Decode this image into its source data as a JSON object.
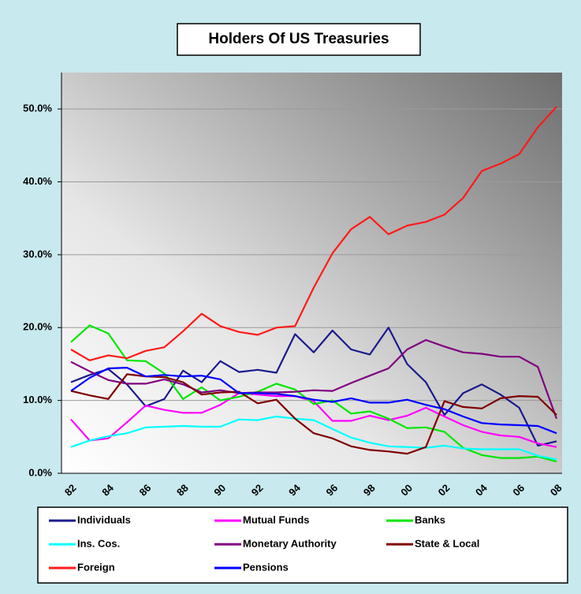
{
  "chart_data": {
    "type": "line",
    "title": "Holders Of US Treasuries",
    "categories": [
      "82",
      null,
      "84",
      null,
      "86",
      null,
      "88",
      null,
      "90",
      null,
      "92",
      null,
      "94",
      null,
      "96",
      null,
      "98",
      null,
      "00",
      null,
      "02",
      null,
      "04",
      null,
      "06",
      null,
      "08"
    ],
    "ylim": [
      0,
      55
    ],
    "yticks": [
      {
        "value": 0,
        "label": "0.0%"
      },
      {
        "value": 10,
        "label": "10.0%"
      },
      {
        "value": 20,
        "label": "20.0%"
      },
      {
        "value": 30,
        "label": "30.0%"
      },
      {
        "value": 40,
        "label": "40.0%"
      },
      {
        "value": 50,
        "label": "50.0%"
      }
    ],
    "grid": true,
    "series": [
      {
        "name": "Individuals",
        "color": "#1a1a8c",
        "values": [
          12.5,
          13.5,
          14.3,
          12.2,
          9.2,
          10.2,
          14.1,
          12.5,
          15.4,
          13.9,
          14.2,
          13.8,
          19.1,
          16.6,
          19.6,
          17.0,
          16.3,
          20.0,
          15.0,
          12.5,
          8.0,
          11.0,
          12.2,
          10.8,
          9.0,
          3.8,
          4.4
        ]
      },
      {
        "name": "Mutual Funds",
        "color": "#ff00ff",
        "values": [
          7.4,
          4.5,
          4.8,
          7.0,
          9.3,
          8.7,
          8.3,
          8.3,
          9.4,
          11.0,
          10.8,
          10.6,
          10.6,
          9.9,
          7.2,
          7.2,
          7.9,
          7.3,
          7.9,
          9.0,
          7.8,
          6.6,
          5.7,
          5.2,
          5.0,
          4.1,
          3.6
        ]
      },
      {
        "name": "Banks",
        "color": "#00e600",
        "values": [
          18.0,
          20.3,
          19.2,
          15.5,
          15.4,
          13.7,
          10.2,
          11.8,
          10.0,
          10.5,
          11.2,
          12.3,
          11.5,
          9.5,
          10.0,
          8.2,
          8.5,
          7.5,
          6.2,
          6.3,
          5.7,
          3.5,
          2.5,
          2.1,
          2.1,
          2.3,
          1.6
        ]
      },
      {
        "name": "Ins. Cos.",
        "color": "#00ffff",
        "values": [
          3.6,
          4.5,
          5.1,
          5.5,
          6.3,
          6.4,
          6.5,
          6.4,
          6.4,
          7.4,
          7.3,
          7.8,
          7.5,
          7.3,
          6.1,
          4.9,
          4.2,
          3.7,
          3.6,
          3.5,
          3.8,
          3.4,
          3.3,
          3.3,
          3.3,
          2.4,
          1.9
        ]
      },
      {
        "name": "Monetary Authority",
        "color": "#800080",
        "values": [
          15.3,
          14.0,
          12.8,
          12.3,
          12.3,
          12.9,
          12.2,
          11.1,
          11.4,
          11.0,
          11.1,
          11.1,
          11.2,
          11.4,
          11.3,
          12.4,
          13.4,
          14.4,
          17.0,
          18.3,
          17.4,
          16.6,
          16.4,
          16.0,
          16.0,
          14.6,
          7.5
        ]
      },
      {
        "name": "State & Local",
        "color": "#800000",
        "values": [
          11.3,
          10.7,
          10.2,
          13.6,
          13.3,
          13.2,
          12.5,
          10.8,
          11.1,
          11.2,
          9.6,
          10.1,
          7.5,
          5.5,
          4.8,
          3.7,
          3.2,
          3.0,
          2.7,
          3.6,
          9.9,
          9.1,
          8.9,
          10.3,
          10.6,
          10.5,
          8.0
        ]
      },
      {
        "name": "Foreign",
        "color": "#ff1a1a",
        "values": [
          17.0,
          15.5,
          16.2,
          15.8,
          16.8,
          17.3,
          19.5,
          21.9,
          20.2,
          19.4,
          19.0,
          20.0,
          20.2,
          25.5,
          30.2,
          33.5,
          35.2,
          32.8,
          34.0,
          34.5,
          35.5,
          37.8,
          41.5,
          42.5,
          43.8,
          47.5,
          50.3
        ]
      },
      {
        "name": "Pensions",
        "color": "#0000ff",
        "values": [
          11.3,
          13.1,
          14.4,
          14.5,
          13.3,
          13.5,
          13.3,
          13.4,
          12.9,
          11.0,
          11.0,
          10.9,
          10.6,
          10.1,
          9.8,
          10.3,
          9.7,
          9.7,
          10.1,
          9.4,
          8.8,
          7.8,
          6.9,
          6.7,
          6.6,
          6.5,
          5.5
        ]
      }
    ]
  }
}
